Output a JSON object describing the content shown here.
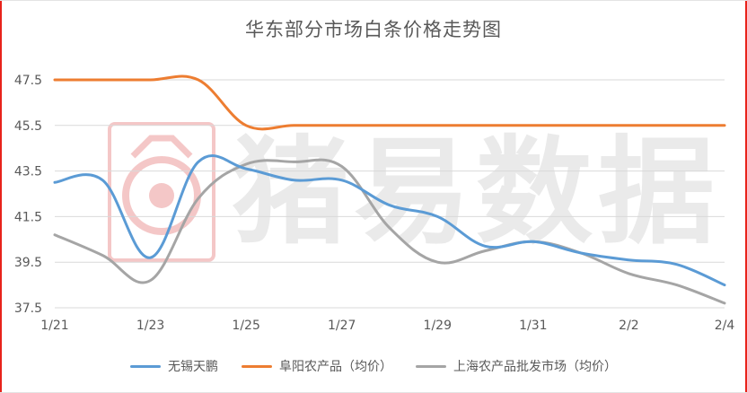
{
  "colors": {
    "wuxi": "#5b9bd5",
    "fuyang": "#ed7d31",
    "shanghai": "#a5a5a5",
    "grid": "#d9d9d9",
    "watermark_red": "#e06060"
  },
  "watermark": {
    "text": "猪易数据",
    "logo_icon": "pig-logo-icon"
  },
  "chart_data": {
    "type": "line",
    "title": "华东部分市场白条价格走势图",
    "x": [
      "1/21",
      "1/22",
      "1/23",
      "1/24",
      "1/25",
      "1/26",
      "1/27",
      "1/28",
      "1/29",
      "1/30",
      "1/31",
      "2/1",
      "2/2",
      "2/3",
      "2/4"
    ],
    "x_tick_labels": [
      "1/21",
      "1/23",
      "1/25",
      "1/27",
      "1/29",
      "1/31",
      "2/2",
      "2/4"
    ],
    "y_ticks": [
      "37.5",
      "39.5",
      "41.5",
      "43.5",
      "45.5",
      "47.5"
    ],
    "ylim": [
      37.5,
      47.5
    ],
    "grid": true,
    "legend": "bottom",
    "series": [
      {
        "name": "无锡天鹏",
        "color_key": "wuxi",
        "values": [
          43.0,
          43.1,
          39.7,
          43.9,
          43.6,
          43.1,
          43.1,
          42.0,
          41.5,
          40.2,
          40.4,
          39.9,
          39.6,
          39.4,
          38.5
        ]
      },
      {
        "name": "阜阳农产品（均价）",
        "color_key": "fuyang",
        "values": [
          47.5,
          47.5,
          47.5,
          47.5,
          45.5,
          45.5,
          45.5,
          45.5,
          45.5,
          45.5,
          45.5,
          45.5,
          45.5,
          45.5,
          45.5
        ]
      },
      {
        "name": "上海农产品批发市场（均价）",
        "color_key": "shanghai",
        "values": [
          40.7,
          39.8,
          38.7,
          42.3,
          43.8,
          43.9,
          43.7,
          41.0,
          39.5,
          40.0,
          40.4,
          39.9,
          39.0,
          38.5,
          37.7
        ]
      }
    ]
  }
}
